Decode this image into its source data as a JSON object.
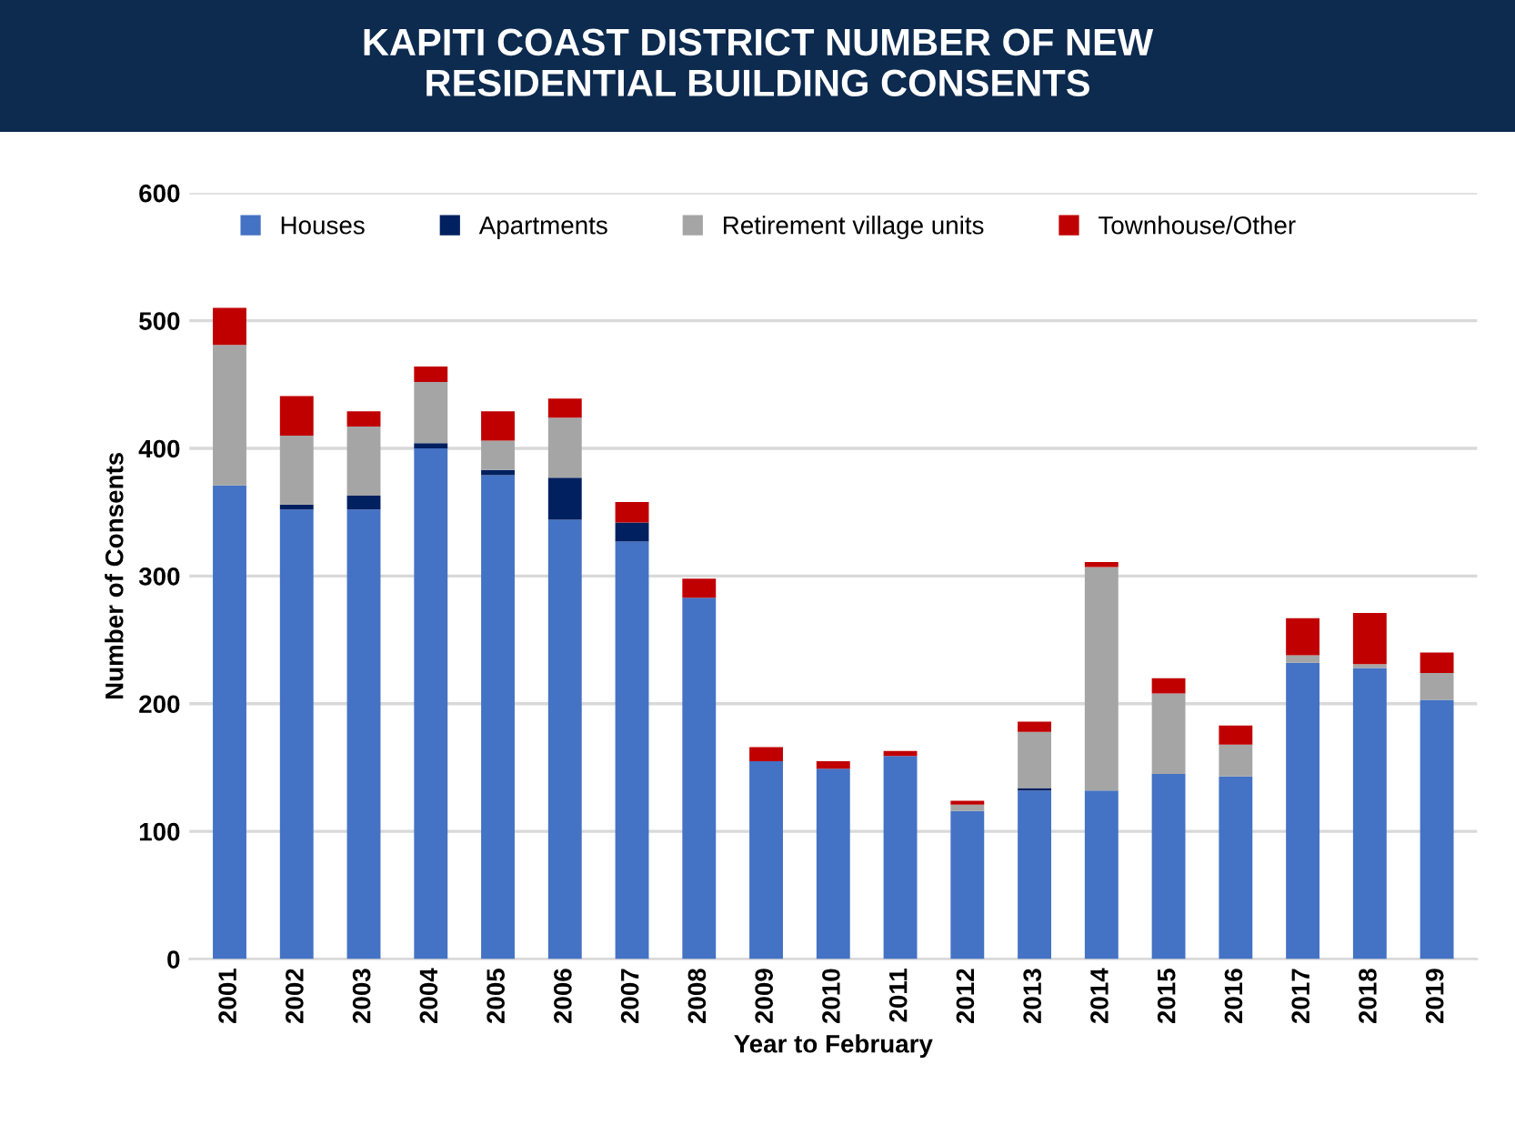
{
  "chart_data": {
    "type": "bar",
    "stacked": true,
    "title": "KAPITI COAST DISTRICT NUMBER OF NEW\nRESIDENTIAL BUILDING CONSENTS",
    "xlabel": "Year to February",
    "ylabel": "Number of Consents",
    "categories": [
      "2001",
      "2002",
      "2003",
      "2004",
      "2005",
      "2006",
      "2007",
      "2008",
      "2009",
      "2010",
      "2011",
      "2012",
      "2013",
      "2014",
      "2015",
      "2016",
      "2017",
      "2018",
      "2019"
    ],
    "series": [
      {
        "name": "Houses",
        "color": "#4472c4",
        "values": [
          371,
          352,
          352,
          400,
          379,
          344,
          327,
          283,
          155,
          149,
          159,
          116,
          132,
          132,
          145,
          143,
          232,
          228,
          203
        ]
      },
      {
        "name": "Apartments",
        "color": "#002060",
        "values": [
          0,
          4,
          11,
          4,
          4,
          33,
          15,
          0,
          0,
          0,
          0,
          0,
          2,
          0,
          0,
          0,
          0,
          0,
          0
        ]
      },
      {
        "name": "Retirement village units",
        "color": "#a5a5a5",
        "values": [
          110,
          54,
          54,
          48,
          23,
          47,
          0,
          0,
          0,
          0,
          0,
          5,
          44,
          175,
          63,
          25,
          6,
          3,
          21
        ]
      },
      {
        "name": "Townhouse/Other",
        "color": "#c00000",
        "values": [
          29,
          31,
          12,
          12,
          23,
          15,
          16,
          15,
          11,
          6,
          4,
          3,
          8,
          4,
          12,
          15,
          29,
          40,
          16
        ]
      }
    ],
    "ylim": [
      0,
      600
    ],
    "yticks": [
      0,
      100,
      200,
      300,
      400,
      500,
      600
    ],
    "grid": "y",
    "legend": "top"
  }
}
